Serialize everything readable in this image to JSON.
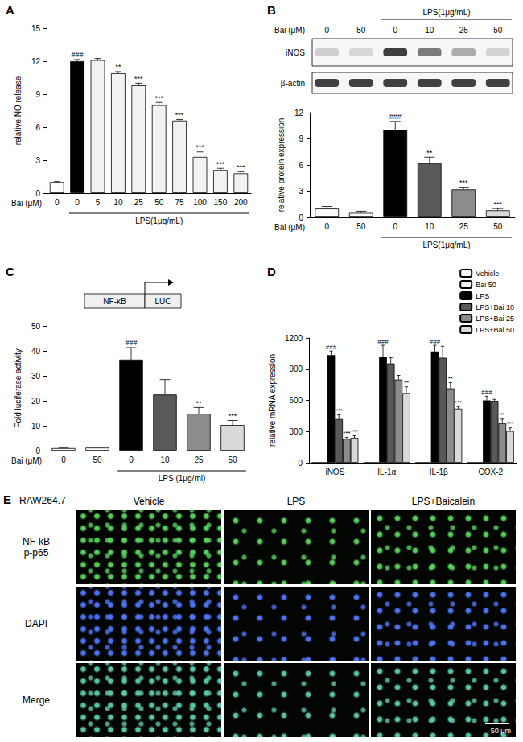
{
  "chart_data": [
    {
      "type": "bar",
      "title": "A",
      "ylabel": "relative NO release",
      "xlabel": "Bai (μM)",
      "categories": [
        "0",
        "0",
        "5",
        "10",
        "25",
        "50",
        "75",
        "100",
        "150",
        "200"
      ],
      "values": [
        1.0,
        12.0,
        12.1,
        10.9,
        9.8,
        8.0,
        6.6,
        3.3,
        2.1,
        1.8
      ],
      "errors": [
        0.05,
        0.15,
        0.15,
        0.15,
        0.2,
        0.25,
        0.1,
        0.45,
        0.15,
        0.15
      ],
      "significance": [
        null,
        "###",
        null,
        "**",
        "***",
        "***",
        "***",
        "***",
        "***",
        "***"
      ],
      "colors": [
        "#ffffff",
        "#000000",
        "#f2f2f2",
        "#f2f2f2",
        "#f2f2f2",
        "#f2f2f2",
        "#f2f2f2",
        "#f2f2f2",
        "#f2f2f2",
        "#f2f2f2"
      ],
      "group": {
        "label": "LPS(1μg/mL)",
        "members": [
          false,
          true,
          true,
          true,
          true,
          true,
          true,
          true,
          true,
          true
        ]
      },
      "ylim": [
        0,
        15
      ],
      "yticks": [
        0,
        3,
        6,
        9,
        12,
        15
      ],
      "grid": false
    },
    {
      "type": "bar",
      "title": "B",
      "ylabel": "relative protein expression",
      "xlabel": "Bai (μM)",
      "categories": [
        "0",
        "50",
        "0",
        "10",
        "25",
        "50"
      ],
      "values": [
        1.0,
        0.5,
        10.0,
        6.2,
        3.2,
        0.8
      ],
      "errors": [
        0.25,
        0.2,
        1.0,
        0.7,
        0.25,
        0.2
      ],
      "significance": [
        null,
        null,
        "###",
        "**",
        "***",
        "***"
      ],
      "colors": [
        "#ffffff",
        "#ffffff",
        "#000000",
        "#595959",
        "#8c8c8c",
        "#d9d9d9"
      ],
      "group": {
        "label": "LPS(1μg/mL)",
        "members": [
          false,
          false,
          true,
          true,
          true,
          true
        ]
      },
      "blot": {
        "rows": [
          "iNOS",
          "β-actin"
        ]
      },
      "ylim": [
        0,
        12
      ],
      "yticks": [
        0,
        3,
        6,
        9,
        12
      ],
      "grid": false
    },
    {
      "type": "bar",
      "title": "C",
      "ylabel": "Fold luciferase activity",
      "xlabel": "Bai (μM)",
      "categories": [
        "0",
        "50",
        "0",
        "10",
        "25",
        "50"
      ],
      "values": [
        1.0,
        1.2,
        36.5,
        22.5,
        14.8,
        10.3
      ],
      "errors": [
        0.2,
        0.2,
        4.8,
        6.0,
        2.5,
        1.8
      ],
      "significance": [
        null,
        null,
        "###",
        null,
        "**",
        "***"
      ],
      "colors": [
        "#ffffff",
        "#ffffff",
        "#000000",
        "#595959",
        "#8c8c8c",
        "#d9d9d9"
      ],
      "group": {
        "label": "LPS (1μg/ml)",
        "members": [
          false,
          false,
          true,
          true,
          true,
          true
        ]
      },
      "diagram": [
        "NF-κB",
        "LUC"
      ],
      "ylim": [
        0,
        50
      ],
      "yticks": [
        0,
        10,
        20,
        30,
        40,
        50
      ],
      "grid": false
    },
    {
      "type": "bar",
      "title": "D",
      "ylabel": "relative mRNA expression",
      "categories": [
        "iNOS",
        "IL-1α",
        "IL-1β",
        "COX-2"
      ],
      "series": [
        {
          "name": "Vehicle",
          "color": "#ffffff",
          "values": [
            1,
            1,
            1,
            1
          ],
          "errors": [
            0,
            0,
            0,
            0
          ],
          "significance": [
            null,
            null,
            null,
            null
          ]
        },
        {
          "name": "Bai 50",
          "color": "#f2f2f2",
          "values": [
            1,
            1,
            1,
            1
          ],
          "errors": [
            0,
            0,
            0,
            0
          ],
          "significance": [
            null,
            null,
            null,
            null
          ]
        },
        {
          "name": "LPS",
          "color": "#000000",
          "values": [
            1035,
            1020,
            1070,
            600
          ],
          "errors": [
            40,
            110,
            60,
            40
          ],
          "significance": [
            "###",
            "###",
            "###",
            "###"
          ]
        },
        {
          "name": "LPS+Bai 10",
          "color": "#595959",
          "values": [
            420,
            955,
            1010,
            595
          ],
          "errors": [
            40,
            55,
            110,
            15
          ],
          "significance": [
            "***",
            null,
            null,
            null
          ]
        },
        {
          "name": "LPS+Bai 25",
          "color": "#8c8c8c",
          "values": [
            230,
            800,
            715,
            380
          ],
          "errors": [
            15,
            40,
            55,
            40
          ],
          "significance": [
            "***",
            null,
            "**",
            "**"
          ]
        },
        {
          "name": "LPS+Bai 50",
          "color": "#d9d9d9",
          "values": [
            240,
            670,
            520,
            305
          ],
          "errors": [
            20,
            60,
            20,
            30
          ],
          "significance": [
            "***",
            "**",
            "***",
            "***"
          ]
        }
      ],
      "legend": "top-right",
      "ylim": [
        0,
        1200
      ],
      "yticks": [
        0,
        300,
        600,
        900,
        1200
      ],
      "grid": false
    }
  ],
  "image_panel": {
    "title": "E",
    "cell_line": "RAW264.7",
    "columns": [
      "Vehicle",
      "LPS",
      "LPS+Baicalein"
    ],
    "rows": [
      [
        "NF-kB",
        "p-p65"
      ],
      [
        "DAPI"
      ],
      [
        "Merge"
      ]
    ],
    "scale_bar": "50 μm"
  }
}
